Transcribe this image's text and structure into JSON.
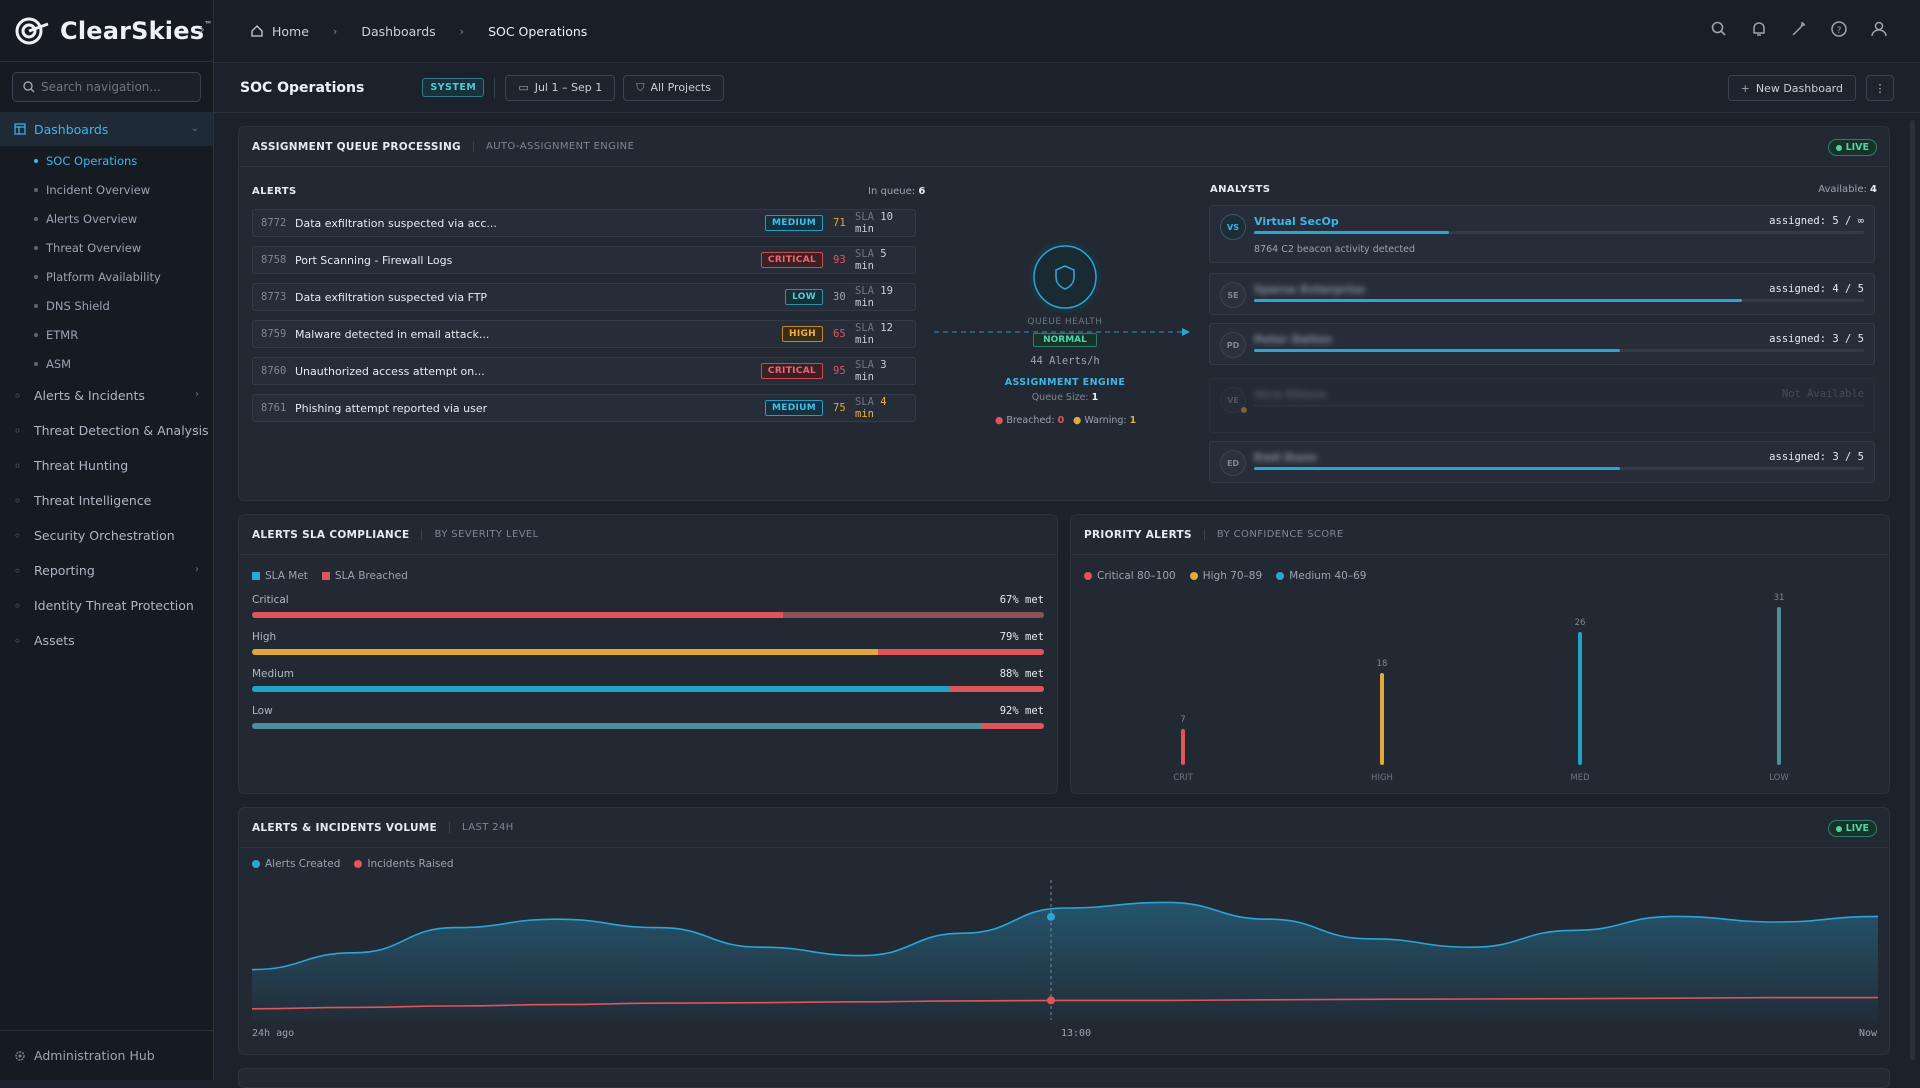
{
  "brand": {
    "name": "ClearSkies",
    "tm": "™"
  },
  "sidebar": {
    "search_placeholder": "Search navigation...",
    "dashboards_label": "Dashboards",
    "subitems": [
      "SOC Operations",
      "Incident Overview",
      "Alerts Overview",
      "Threat Overview",
      "Platform Availability",
      "DNS Shield",
      "ETMR",
      "ASM"
    ],
    "items": [
      "Alerts & Incidents",
      "Threat Detection & Analysis",
      "Threat Hunting",
      "Threat Intelligence",
      "Security Orchestration",
      "Reporting",
      "Identity Threat Protection",
      "Assets"
    ],
    "admin": "Administration Hub"
  },
  "breadcrumb": {
    "home": "Home",
    "dashboards": "Dashboards",
    "current": "SOC Operations"
  },
  "subbar": {
    "title": "SOC Operations",
    "badge": "SYSTEM",
    "date_range": "Jul 1 – Sep 1",
    "projects": "All Projects",
    "new_dashboard": "New Dashboard"
  },
  "queue": {
    "title": "ASSIGNMENT QUEUE PROCESSING",
    "subtitle": "AUTO-ASSIGNMENT ENGINE",
    "live": "LIVE",
    "alerts_label": "ALERTS",
    "in_queue_label": "In queue:",
    "in_queue": "6",
    "alerts": [
      {
        "id": "8772",
        "title": "Data exfiltration suspected via acc...",
        "severity": "MEDIUM",
        "sev": "medium",
        "score": "71",
        "sla": "10 min",
        "sla_color": "#c8d0da"
      },
      {
        "id": "8758",
        "title": "Port Scanning - Firewall Logs",
        "severity": "CRITICAL",
        "sev": "critical",
        "score": "93",
        "sla": "5 min",
        "sla_color": "#c8d0da"
      },
      {
        "id": "8773",
        "title": "Data exfiltration suspected via FTP",
        "severity": "LOW",
        "sev": "low",
        "score": "30",
        "sla": "19 min",
        "sla_color": "#c8d0da"
      },
      {
        "id": "8759",
        "title": "Malware detected in email attack...",
        "severity": "HIGH",
        "sev": "high",
        "score": "65",
        "sla": "12 min",
        "sla_color": "#c8d0da"
      },
      {
        "id": "8760",
        "title": "Unauthorized access attempt on...",
        "severity": "CRITICAL",
        "sev": "critical",
        "score": "95",
        "sla": "3 min",
        "sla_color": "#c8d0da"
      },
      {
        "id": "8761",
        "title": "Phishing attempt reported via user",
        "severity": "MEDIUM",
        "sev": "medium",
        "score": "75",
        "sla": "4 min",
        "sla_color": "#f0b040"
      }
    ],
    "sla_prefix": "SLA",
    "health": {
      "label": "QUEUE HEALTH",
      "status": "NORMAL",
      "rate": "44 Alerts/h",
      "engine": "ASSIGNMENT ENGINE",
      "queue_size_label": "Queue Size:",
      "queue_size": "1",
      "breached_label": "Breached:",
      "breached": "0",
      "warning_label": "Warning:",
      "warning": "1"
    },
    "analysts_label": "ANALYSTS",
    "available_label": "Available:",
    "available": "4",
    "analysts": [
      {
        "initials": "VS",
        "name": "Virtual SecOp",
        "assigned": "assigned: 5 / ∞",
        "fill": 0.32,
        "note": "8764 C2 beacon activity detected",
        "blurred": false
      },
      {
        "initials": "SE",
        "name": "Sparse Enterprise",
        "assigned": "assigned: 4 / 5",
        "fill": 0.8,
        "blurred": true
      },
      {
        "initials": "PD",
        "name": "Peter Dalton",
        "assigned": "assigned: 3 / 5",
        "fill": 0.6,
        "blurred": true
      },
      {
        "initials": "VE",
        "name": "Vera Ellison",
        "assigned": "Not Available",
        "fill": 0,
        "blurred": true,
        "away": true,
        "status": "away"
      },
      {
        "initials": "ED",
        "name": "Emil Dunn",
        "assigned": "assigned: 3 / 5",
        "fill": 0.6,
        "blurred": true
      }
    ]
  },
  "sla": {
    "title": "ALERTS SLA COMPLIANCE",
    "subtitle": "BY SEVERITY LEVEL",
    "legend": [
      {
        "label": "SLA Met",
        "color": "#2aa5d8"
      },
      {
        "label": "SLA Breached",
        "color": "#e0545c"
      }
    ],
    "rows": [
      {
        "label": "Critical",
        "pct": "67% met",
        "met": 0.67,
        "color": "#e0545c",
        "breach_color": "#8a5158"
      },
      {
        "label": "High",
        "pct": "79% met",
        "met": 0.79,
        "color": "#e0a93a",
        "breach_color": "#e0545c"
      },
      {
        "label": "Medium",
        "pct": "88% met",
        "met": 0.88,
        "color": "#1fa3c9",
        "breach_color": "#e0545c"
      },
      {
        "label": "Low",
        "pct": "92% met",
        "met": 0.92,
        "color": "#4f8f9c",
        "breach_color": "#e0545c"
      }
    ]
  },
  "priority": {
    "title": "PRIORITY ALERTS",
    "subtitle": "BY CONFIDENCE SCORE",
    "legend": [
      {
        "label": "Critical 80–100",
        "color": "#e0545c"
      },
      {
        "label": "High 70–89",
        "color": "#e0a93a"
      },
      {
        "label": "Medium 40–69",
        "color": "#2aa5d8"
      }
    ]
  },
  "chart_data": [
    {
      "type": "bar",
      "categories": [
        "CRIT",
        "HIGH",
        "MED",
        "LOW"
      ],
      "values": [
        7,
        18,
        26,
        31
      ],
      "colors": [
        "#e0545c",
        "#e0a93a",
        "#1fa3c9",
        "#4f8f9c"
      ]
    },
    {
      "type": "area",
      "series": [
        {
          "name": "Alerts Created",
          "color": "#2aa5d8",
          "values": [
            18,
            24,
            33,
            36,
            33,
            26,
            23,
            31,
            40,
            42,
            36,
            29,
            26,
            32,
            37,
            35,
            37
          ]
        },
        {
          "name": "Incidents Raised",
          "color": "#e0545c",
          "values": [
            4,
            4.5,
            5,
            5.5,
            6,
            6.2,
            6.5,
            6.8,
            7,
            7,
            7.2,
            7.4,
            7.5,
            7.6,
            7.8,
            8,
            8
          ]
        }
      ],
      "ylim": [
        0,
        50
      ],
      "x_labels": [
        "24h ago",
        "13:00",
        "Now"
      ]
    }
  ],
  "volume": {
    "title": "ALERTS & INCIDENTS VOLUME",
    "subtitle": "LAST 24H",
    "live": "LIVE"
  }
}
